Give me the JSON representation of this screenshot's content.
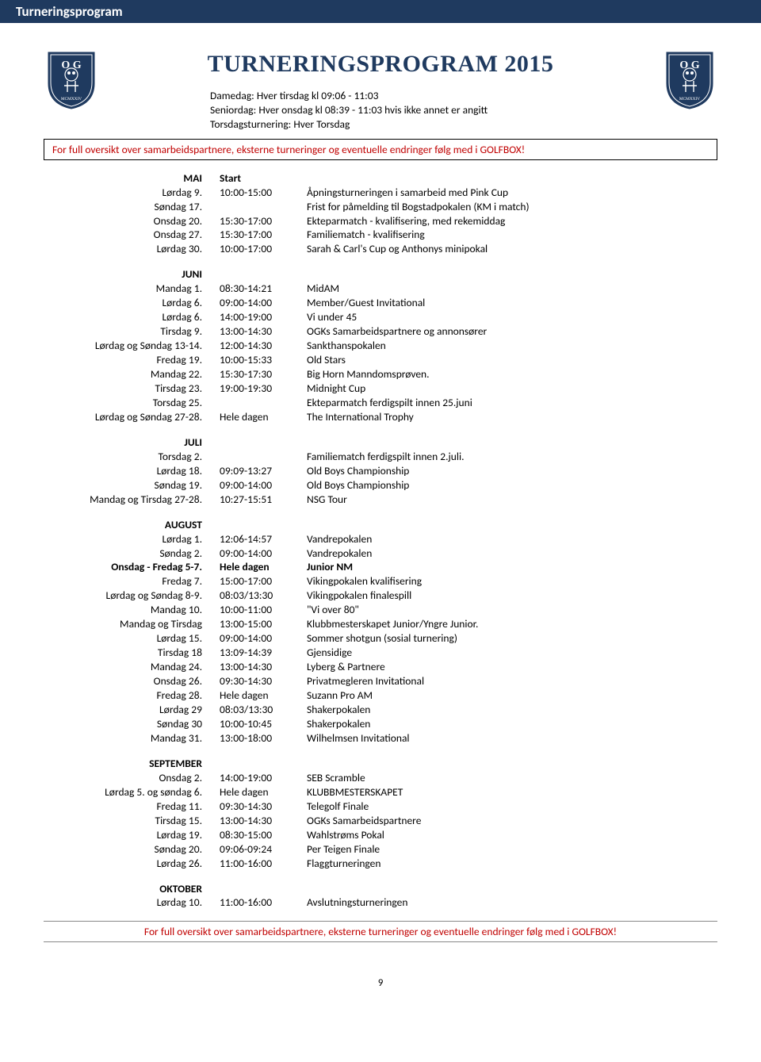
{
  "header": {
    "tab": "Turneringsprogram"
  },
  "title": "TURNERINGSPROGRAM 2015",
  "info_lines": [
    "Damedag: Hver tirsdag kl 09:06 - 11:03",
    "Seniordag: Hver onsdag kl 08:39 - 11:03 hvis ikke annet er angitt",
    "Torsdagsturnering: Hver Torsdag"
  ],
  "notice": "For full oversikt over samarbeidspartnere, eksterne turneringer og eventuelle endringer følg med i GOLFBOX!",
  "footer_notice": "For full oversikt over samarbeidspartnere, eksterne turneringer og eventuelle endringer følg med i GOLFBOX!",
  "page_number": "9",
  "colors": {
    "navy": "#1f3a5f",
    "red": "#c00000"
  },
  "crest": {
    "top_text": "O   G",
    "bottom_text": "MCMXXIV"
  },
  "months": [
    {
      "name": "MAI",
      "start_label": "Start",
      "rows": [
        {
          "day": "Lørdag 9.",
          "time": "10:00-15:00",
          "desc": "Åpningsturneringen i samarbeid med Pink Cup"
        },
        {
          "day": "Søndag 17.",
          "time": "",
          "desc": "Frist for påmelding til Bogstadpokalen (KM i match)"
        },
        {
          "day": "Onsdag 20.",
          "time": "15:30-17:00",
          "desc": "Ekteparmatch - kvalifisering, med rekemiddag"
        },
        {
          "day": "Onsdag 27.",
          "time": "15:30-17:00",
          "desc": "Familiematch - kvalifisering"
        },
        {
          "day": "Lørdag 30.",
          "time": "10:00-17:00",
          "desc": "Sarah & Carl's Cup og Anthonys minipokal"
        }
      ]
    },
    {
      "name": "JUNI",
      "rows": [
        {
          "day": "Mandag 1.",
          "time": "08:30-14:21",
          "desc": "MidAM"
        },
        {
          "day": "Lørdag 6.",
          "time": "09:00-14:00",
          "desc": "Member/Guest Invitational"
        },
        {
          "day": "Lørdag 6.",
          "time": "14:00-19:00",
          "desc": "Vi under 45"
        },
        {
          "day": "Tirsdag 9.",
          "time": "13:00-14:30",
          "desc": "OGKs Samarbeidspartnere og annonsører"
        },
        {
          "day": "Lørdag og Søndag 13-14.",
          "time": "12:00-14:30",
          "desc": "Sankthanspokalen"
        },
        {
          "day": "Fredag 19.",
          "time": "10:00-15:33",
          "desc": "Old Stars"
        },
        {
          "day": "Mandag 22.",
          "time": "15:30-17:30",
          "desc": "Big Horn Manndomsprøven."
        },
        {
          "day": "Tirsdag 23.",
          "time": "19:00-19:30",
          "desc": "Midnight Cup"
        },
        {
          "day": "Torsdag 25.",
          "time": "",
          "desc": "Ekteparmatch ferdigspilt innen 25.juni"
        },
        {
          "day": "Lørdag og Søndag 27-28.",
          "time": "Hele dagen",
          "desc": "The International Trophy"
        }
      ]
    },
    {
      "name": "JULI",
      "rows": [
        {
          "day": "Torsdag 2.",
          "time": "",
          "desc": "Familiematch ferdigspilt innen 2.juli."
        },
        {
          "day": "Lørdag 18.",
          "time": "09:09-13:27",
          "desc": "Old Boys Championship"
        },
        {
          "day": "Søndag 19.",
          "time": "09:00-14:00",
          "desc": "Old Boys Championship"
        },
        {
          "day": "Mandag og Tirsdag 27-28.",
          "time": "10:27-15:51",
          "desc": "NSG Tour"
        }
      ]
    },
    {
      "name": "AUGUST",
      "rows": [
        {
          "day": "Lørdag 1.",
          "time": "12:06-14:57",
          "desc": "Vandrepokalen"
        },
        {
          "day": "Søndag 2.",
          "time": "09:00-14:00",
          "desc": "Vandrepokalen"
        },
        {
          "day": "Onsdag - Fredag 5-7.",
          "time": "Hele dagen",
          "desc": "Junior NM",
          "bold": true
        },
        {
          "day": "Fredag 7.",
          "time": "15:00-17:00",
          "desc": "Vikingpokalen kvalifisering"
        },
        {
          "day": "Lørdag og Søndag 8-9.",
          "time": "08:03/13:30",
          "desc": "Vikingpokalen finalespill"
        },
        {
          "day": "Mandag 10.",
          "time": "10:00-11:00",
          "desc": "\"Vi over 80\""
        },
        {
          "day": "Mandag og Tirsdag",
          "time": "13:00-15:00",
          "desc": "Klubbmesterskapet Junior/Yngre Junior."
        },
        {
          "day": "Lørdag 15.",
          "time": "09:00-14:00",
          "desc": "Sommer shotgun (sosial turnering)"
        },
        {
          "day": "Tirsdag 18",
          "time": "13:09-14:39",
          "desc": "Gjensidige"
        },
        {
          "day": "Mandag 24.",
          "time": "13:00-14:30",
          "desc": "Lyberg & Partnere"
        },
        {
          "day": "Onsdag 26.",
          "time": "09:30-14:30",
          "desc": "Privatmegleren Invitational"
        },
        {
          "day": "Fredag 28.",
          "time": "Hele dagen",
          "desc": "Suzann Pro AM"
        },
        {
          "day": "Lørdag 29",
          "time": "08:03/13:30",
          "desc": "Shakerpokalen"
        },
        {
          "day": "Søndag 30",
          "time": "10:00-10:45",
          "desc": "Shakerpokalen"
        },
        {
          "day": "Mandag 31.",
          "time": "13:00-18:00",
          "desc": "Wilhelmsen Invitational"
        }
      ]
    },
    {
      "name": "SEPTEMBER",
      "rows": [
        {
          "day": "Onsdag 2.",
          "time": "14:00-19:00",
          "desc": "SEB Scramble"
        },
        {
          "day": "Lørdag 5. og søndag 6.",
          "time": "Hele dagen",
          "desc": "KLUBBMESTERSKAPET"
        },
        {
          "day": "Fredag 11.",
          "time": "09:30-14:30",
          "desc": "Telegolf Finale"
        },
        {
          "day": "Tirsdag 15.",
          "time": "13:00-14:30",
          "desc": "OGKs Samarbeidspartnere"
        },
        {
          "day": "Lørdag 19.",
          "time": "08:30-15:00",
          "desc": "Wahlstrøms Pokal"
        },
        {
          "day": "Søndag 20.",
          "time": "09:06-09:24",
          "desc": "Per Teigen Finale"
        },
        {
          "day": "Lørdag 26.",
          "time": "11:00-16:00",
          "desc": "Flaggturneringen"
        }
      ]
    },
    {
      "name": "OKTOBER",
      "rows": [
        {
          "day": "Lørdag 10.",
          "time": "11:00-16:00",
          "desc": "Avslutningsturneringen"
        }
      ]
    }
  ]
}
